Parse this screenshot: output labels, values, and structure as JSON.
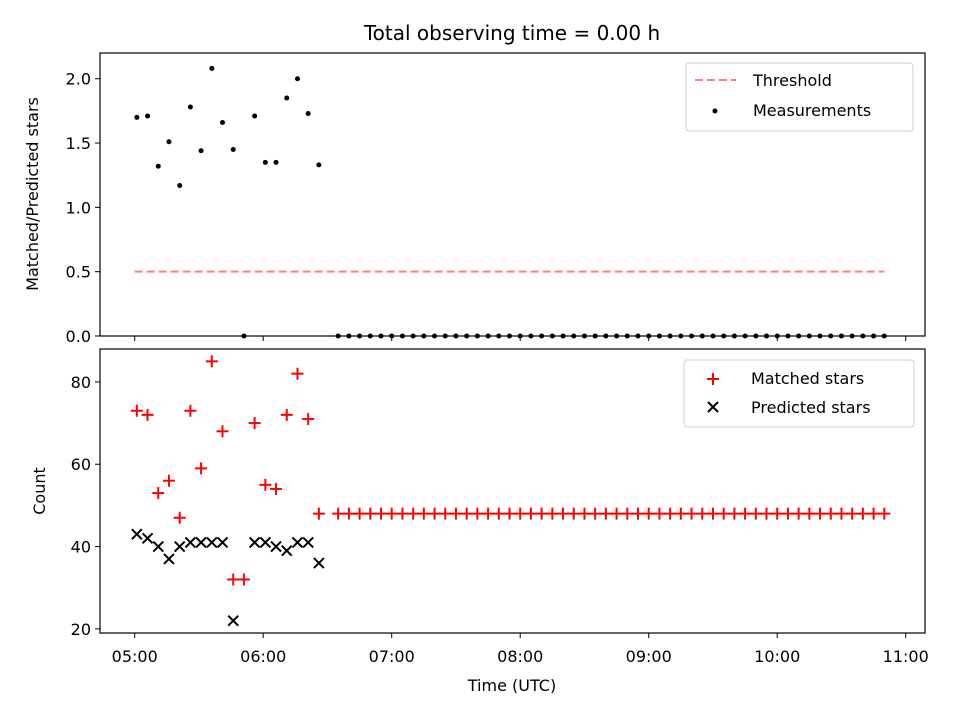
{
  "chart_data": [
    {
      "type": "scatter",
      "title": "Total observing time = 0.00 h",
      "xlabel": "",
      "ylabel": "Matched/Predicted stars",
      "ylim": [
        0,
        2.2
      ],
      "yticks": [
        "0.0",
        "0.5",
        "1.0",
        "1.5",
        "2.0"
      ],
      "xlim_hours": [
        4.73,
        11.15
      ],
      "legend_position": "top-right",
      "grid": false,
      "series": [
        {
          "name": "Threshold",
          "kind": "line",
          "style": "dashed",
          "color": "#ff7f7f",
          "x": [
            "05:00",
            "10:50"
          ],
          "y": [
            0.5,
            0.5
          ]
        },
        {
          "name": "Measurements",
          "kind": "scatter",
          "marker": "dot",
          "color": "#000000",
          "x": [
            "05:01",
            "05:06",
            "05:11",
            "05:16",
            "05:21",
            "05:26",
            "05:31",
            "05:36",
            "05:41",
            "05:46",
            "05:51",
            "05:56",
            "06:01",
            "06:06",
            "06:11",
            "06:16",
            "06:21",
            "06:26",
            "06:35",
            "06:40",
            "06:45",
            "06:50",
            "06:55",
            "07:00",
            "07:05",
            "07:10",
            "07:15",
            "07:20",
            "07:25",
            "07:30",
            "07:35",
            "07:40",
            "07:45",
            "07:50",
            "07:55",
            "08:00",
            "08:05",
            "08:10",
            "08:15",
            "08:20",
            "08:25",
            "08:30",
            "08:35",
            "08:40",
            "08:45",
            "08:50",
            "08:55",
            "09:00",
            "09:05",
            "09:10",
            "09:15",
            "09:20",
            "09:25",
            "09:30",
            "09:35",
            "09:40",
            "09:45",
            "09:50",
            "09:55",
            "10:00",
            "10:05",
            "10:10",
            "10:15",
            "10:20",
            "10:25",
            "10:30",
            "10:35",
            "10:40",
            "10:45",
            "10:50"
          ],
          "y": [
            1.7,
            1.71,
            1.32,
            1.51,
            1.17,
            1.78,
            1.44,
            2.08,
            1.66,
            1.45,
            0.0,
            1.71,
            1.35,
            1.35,
            1.85,
            2.0,
            1.73,
            1.33,
            0,
            0,
            0,
            0,
            0,
            0,
            0,
            0,
            0,
            0,
            0,
            0,
            0,
            0,
            0,
            0,
            0,
            0,
            0,
            0,
            0,
            0,
            0,
            0,
            0,
            0,
            0,
            0,
            0,
            0,
            0,
            0,
            0,
            0,
            0,
            0,
            0,
            0,
            0,
            0,
            0,
            0,
            0,
            0,
            0,
            0,
            0,
            0,
            0,
            0,
            0,
            0
          ]
        }
      ]
    },
    {
      "type": "scatter",
      "title": "",
      "xlabel": "Time (UTC)",
      "ylabel": "Count",
      "ylim": [
        19,
        88
      ],
      "yticks": [
        "20",
        "40",
        "60",
        "80"
      ],
      "xlim_hours": [
        4.73,
        11.15
      ],
      "xticks": [
        "05:00",
        "06:00",
        "07:00",
        "08:00",
        "09:00",
        "10:00",
        "11:00"
      ],
      "legend_position": "top-right",
      "grid": false,
      "series": [
        {
          "name": "Matched stars",
          "kind": "scatter",
          "marker": "plus",
          "color": "#ff0000",
          "x": [
            "05:01",
            "05:06",
            "05:11",
            "05:16",
            "05:21",
            "05:26",
            "05:31",
            "05:36",
            "05:41",
            "05:46",
            "05:51",
            "05:56",
            "06:01",
            "06:06",
            "06:11",
            "06:16",
            "06:21",
            "06:26",
            "06:35",
            "06:40",
            "06:45",
            "06:50",
            "06:55",
            "07:00",
            "07:05",
            "07:10",
            "07:15",
            "07:20",
            "07:25",
            "07:30",
            "07:35",
            "07:40",
            "07:45",
            "07:50",
            "07:55",
            "08:00",
            "08:05",
            "08:10",
            "08:15",
            "08:20",
            "08:25",
            "08:30",
            "08:35",
            "08:40",
            "08:45",
            "08:50",
            "08:55",
            "09:00",
            "09:05",
            "09:10",
            "09:15",
            "09:20",
            "09:25",
            "09:30",
            "09:35",
            "09:40",
            "09:45",
            "09:50",
            "09:55",
            "10:00",
            "10:05",
            "10:10",
            "10:15",
            "10:20",
            "10:25",
            "10:30",
            "10:35",
            "10:40",
            "10:45",
            "10:50"
          ],
          "y": [
            73,
            72,
            53,
            56,
            47,
            73,
            59,
            85,
            68,
            32,
            32,
            70,
            55,
            54,
            72,
            82,
            71,
            48,
            48,
            48,
            48,
            48,
            48,
            48,
            48,
            48,
            48,
            48,
            48,
            48,
            48,
            48,
            48,
            48,
            48,
            48,
            48,
            48,
            48,
            48,
            48,
            48,
            48,
            48,
            48,
            48,
            48,
            48,
            48,
            48,
            48,
            48,
            48,
            48,
            48,
            48,
            48,
            48,
            48,
            48,
            48,
            48,
            48,
            48,
            48,
            48,
            48,
            48,
            48,
            48
          ]
        },
        {
          "name": "Predicted stars",
          "kind": "scatter",
          "marker": "x",
          "color": "#000000",
          "x": [
            "05:01",
            "05:06",
            "05:11",
            "05:16",
            "05:21",
            "05:26",
            "05:31",
            "05:36",
            "05:41",
            "05:46",
            "05:56",
            "06:01",
            "06:06",
            "06:11",
            "06:16",
            "06:21",
            "06:26"
          ],
          "y": [
            43,
            42,
            40,
            37,
            40,
            41,
            41,
            41,
            41,
            22,
            41,
            41,
            40,
            39,
            41,
            41,
            36
          ]
        }
      ]
    }
  ]
}
